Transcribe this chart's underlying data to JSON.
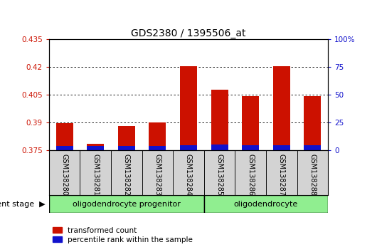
{
  "title": "GDS2380 / 1395506_at",
  "samples": [
    "GSM138280",
    "GSM138281",
    "GSM138282",
    "GSM138283",
    "GSM138284",
    "GSM138285",
    "GSM138286",
    "GSM138287",
    "GSM138288"
  ],
  "transformed_counts": [
    0.3895,
    0.3785,
    0.3878,
    0.39,
    0.4205,
    0.4075,
    0.404,
    0.4205,
    0.404
  ],
  "percentile_ranks": [
    3.5,
    3.5,
    3.5,
    3.5,
    4.5,
    5.0,
    4.5,
    4.5,
    4.5
  ],
  "ylim_left": [
    0.375,
    0.435
  ],
  "ylim_right": [
    0,
    100
  ],
  "yticks_left": [
    0.375,
    0.39,
    0.405,
    0.42,
    0.435
  ],
  "yticks_right": [
    0,
    25,
    50,
    75,
    100
  ],
  "bar_color_red": "#cc1100",
  "bar_color_blue": "#1111cc",
  "groups": [
    {
      "label": "oligodendrocyte progenitor",
      "start": 0,
      "end": 4,
      "color": "#90ee90"
    },
    {
      "label": "oligodendrocyte",
      "start": 5,
      "end": 8,
      "color": "#90ee90"
    }
  ],
  "group_label_prefix": "development stage",
  "xlabel_bg": "#d3d3d3",
  "title_fontsize": 10,
  "tick_fontsize": 7.5
}
